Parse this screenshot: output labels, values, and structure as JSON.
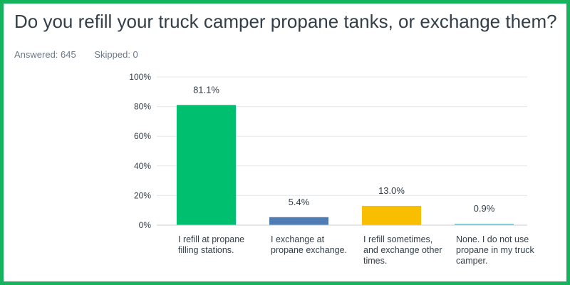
{
  "question": "Do you refill your truck camper propane tanks, or exchange them?",
  "summary": {
    "answered": "Answered: 645",
    "skipped": "Skipped: 0"
  },
  "colors": {
    "frame": "#16b25c",
    "grid": "#e5e8eb",
    "axis_text": "#333e48"
  },
  "chart_data": {
    "type": "bar",
    "categories": [
      "I refill at propane filling stations.",
      "I exchange at propane exchange.",
      "I refill sometimes, and exchange other times.",
      "None. I do not use propane in my truck camper."
    ],
    "values": [
      81.1,
      5.4,
      13.0,
      0.9
    ],
    "value_labels": [
      "81.1%",
      "5.4%",
      "13.0%",
      "0.9%"
    ],
    "bar_colors": [
      "#00bf6f",
      "#507cb6",
      "#f9be00",
      "#6bc8cd"
    ],
    "ylim": [
      0,
      100
    ],
    "yticks": [
      0,
      20,
      40,
      60,
      80,
      100
    ],
    "ytick_labels": [
      "0%",
      "20%",
      "40%",
      "60%",
      "80%",
      "100%"
    ],
    "grid": true
  }
}
